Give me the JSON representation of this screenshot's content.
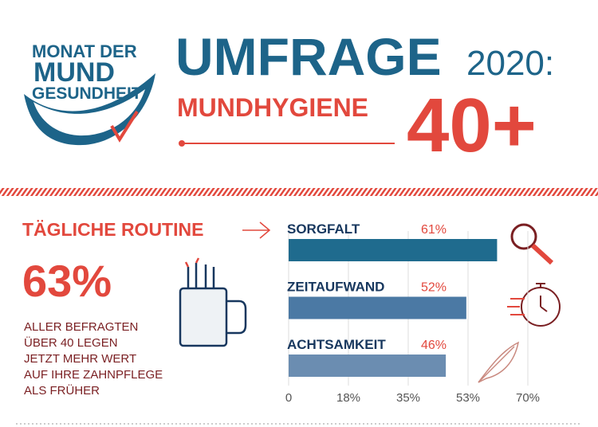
{
  "logo": {
    "lines": [
      "MONAT DER",
      "MUND",
      "GESUNDHEIT"
    ]
  },
  "header": {
    "title": "UMFRAGE",
    "year": "2020:",
    "subtitle": "MUNDHYGIENE",
    "age": "40+"
  },
  "section": {
    "title": "TÄGLICHE ROUTINE"
  },
  "stat": {
    "value": "63%",
    "lines": [
      "ALLER BEFRAGTEN",
      "ÜBER 40 LEGEN",
      "JETZT MEHR WERT",
      "AUF IHRE ZAHNPFLEGE",
      "ALS FRÜHER"
    ]
  },
  "chart_data": {
    "type": "hbar",
    "categories": [
      "SORGFALT",
      "ZEITAUFWAND",
      "ACHTSAMKEIT"
    ],
    "values": [
      61,
      52,
      46
    ],
    "value_labels": [
      "61%",
      "52%",
      "46%"
    ],
    "colors": [
      "#1f6b8e",
      "#4b79a4",
      "#6b8db1"
    ],
    "xlim": [
      0,
      70
    ],
    "xticks": [
      0,
      {
        "value": 17.5,
        "label": "18%"
      },
      {
        "value": 35,
        "label": "35%"
      },
      {
        "value": 52.5,
        "label": "53%"
      },
      {
        "value": 70,
        "label": "70%"
      }
    ],
    "grid": true
  }
}
